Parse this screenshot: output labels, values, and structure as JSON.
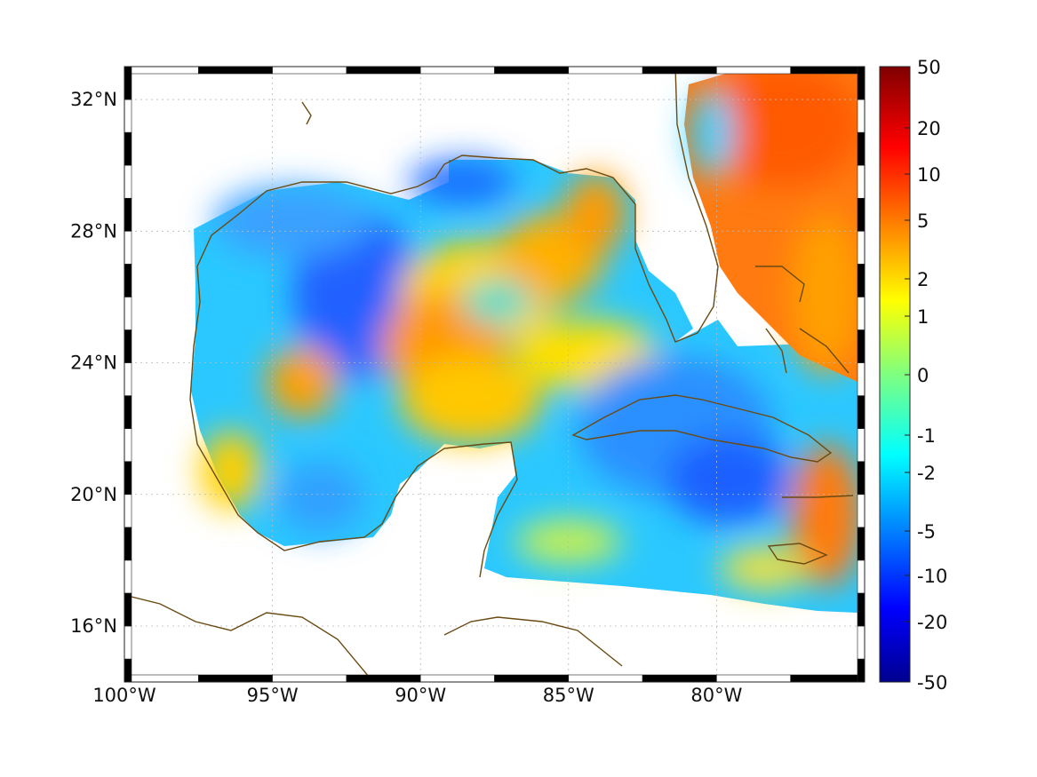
{
  "map": {
    "lon_range": [
      -100,
      -75
    ],
    "lat_range": [
      14.3,
      33
    ],
    "lon_ticks": [
      {
        "value": -100,
        "label": "100°W"
      },
      {
        "value": -95,
        "label": "95°W"
      },
      {
        "value": -90,
        "label": "90°W"
      },
      {
        "value": -85,
        "label": "85°W"
      },
      {
        "value": -80,
        "label": "80°W"
      }
    ],
    "lat_ticks": [
      {
        "value": 32,
        "label": "32°N"
      },
      {
        "value": 28,
        "label": "28°N"
      },
      {
        "value": 24,
        "label": "24°N"
      },
      {
        "value": 20,
        "label": "20°N"
      },
      {
        "value": 16,
        "label": "16°N"
      }
    ],
    "grid": "dotted",
    "frame": "alternating black-white",
    "coastline_color": "#6b4a12",
    "field": "smoothed diverging color field over Gulf of Mexico and Caribbean"
  },
  "colorbar": {
    "colormap": "jet",
    "position": "right",
    "tick_labels": [
      "50",
      "20",
      "10",
      "5",
      "2",
      "1",
      "0",
      "-1",
      "-2",
      "-5",
      "-10",
      "-20",
      "-50"
    ],
    "range": [
      -50,
      50
    ]
  }
}
